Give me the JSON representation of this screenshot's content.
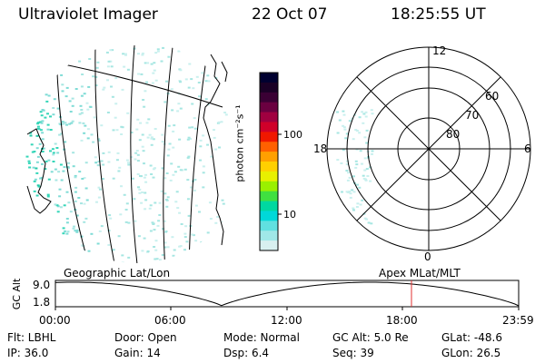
{
  "header": {
    "title": "Ultraviolet Imager",
    "date": "22 Oct 07",
    "time": "18:25:55 UT"
  },
  "colorbar": {
    "unit_label": "photon cm⁻²s⁻¹",
    "ticks": [
      "100",
      "10"
    ],
    "colors": [
      "#000030",
      "#1a0026",
      "#3a0034",
      "#6a0040",
      "#a00040",
      "#d0002a",
      "#f01800",
      "#ff6000",
      "#ffa000",
      "#ffd000",
      "#e8f000",
      "#9af000",
      "#40e040",
      "#00d8a0",
      "#00d8d8",
      "#60e0e0",
      "#a0e8e8",
      "#d8f0f0"
    ]
  },
  "geo_map": {
    "emission_colors": [
      "#c9f0ee",
      "#a6e6e2",
      "#7fdcd6",
      "#35d6b8",
      "#22c7a6"
    ]
  },
  "polar_plot": {
    "top_label": "12",
    "bottom_label": "0",
    "left_label": "18",
    "right_label": "6",
    "lat_labels": [
      "60",
      "70",
      "80"
    ]
  },
  "timeline": {
    "label_left": "Geographic Lat/Lon",
    "label_right": "Apex MLat/MLT",
    "axis_title": "GC Alt",
    "y_ticks": [
      "9.0",
      "1.8"
    ],
    "time_ticks": [
      "00:00",
      "06:00",
      "12:00",
      "18:00",
      "23:59"
    ],
    "marker_color": "#e03030",
    "marker_time": "18:25:55"
  },
  "footer": {
    "flt": "Flt: LBHL",
    "ip": "IP: 36.0",
    "door": "Door: Open",
    "gain": "Gain: 14",
    "mode": "Mode: Normal",
    "dsp": "Dsp:   6.4",
    "gcalt": "GC Alt: 5.0 Re",
    "seq": "Seq: 39",
    "glat": "GLat:  -48.6",
    "glon": "GLon:   26.5"
  }
}
